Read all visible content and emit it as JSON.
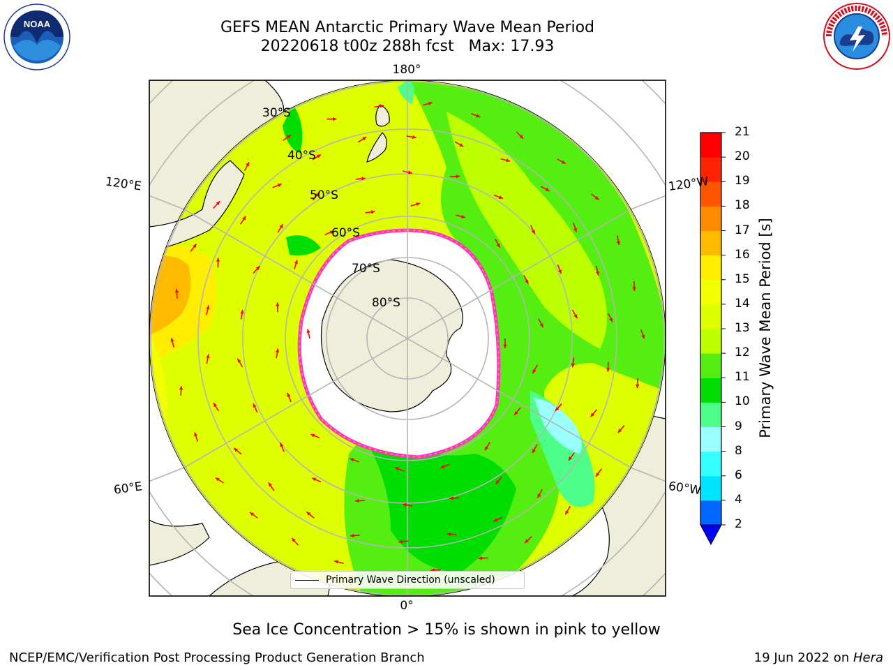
{
  "header": {
    "title_line1": "GEFS MEAN Antarctic Primary Wave Mean Period",
    "title_line2": "20220618 t00z 288h fcst   Max: 17.93"
  },
  "map": {
    "projection": "south-polar-stereographic",
    "lon_labels": {
      "top": "180°",
      "bottom": "0°",
      "left_upper": "120°E",
      "left_lower": "60°E",
      "right_upper": "120°W",
      "right_lower": "60°W"
    },
    "lat_labels": [
      "30°S",
      "40°S",
      "50°S",
      "60°S",
      "70°S",
      "80°S"
    ],
    "legend_entry": "Primary Wave Direction (unscaled)",
    "arrow_color": "#ff0000",
    "land_color": "#efeedb",
    "sea_ice_color": "#ff33cc"
  },
  "colorbar": {
    "label": "Primary Wave Mean Period [s]",
    "ticks": [
      "2",
      "4",
      "6",
      "8",
      "9",
      "10",
      "11",
      "12",
      "13",
      "14",
      "15",
      "16",
      "17",
      "18",
      "19",
      "20",
      "21"
    ],
    "colors": [
      "#0066ff",
      "#00e5ff",
      "#33ffff",
      "#99ffff",
      "#4dff88",
      "#00dd00",
      "#55ee11",
      "#bbff00",
      "#ddff00",
      "#f2ff00",
      "#ffee00",
      "#ffbb00",
      "#ff8c00",
      "#ff5500",
      "#ff2200",
      "#ff0000"
    ],
    "extend_color": "#0000ff"
  },
  "caption": "Sea Ice Concentration > 15% is shown in pink to yellow",
  "footer": {
    "left": "NCEP/EMC/Verification Post Processing Product Generation Branch",
    "right_date": "19 Jun 2022 on ",
    "right_host": "Hera"
  }
}
